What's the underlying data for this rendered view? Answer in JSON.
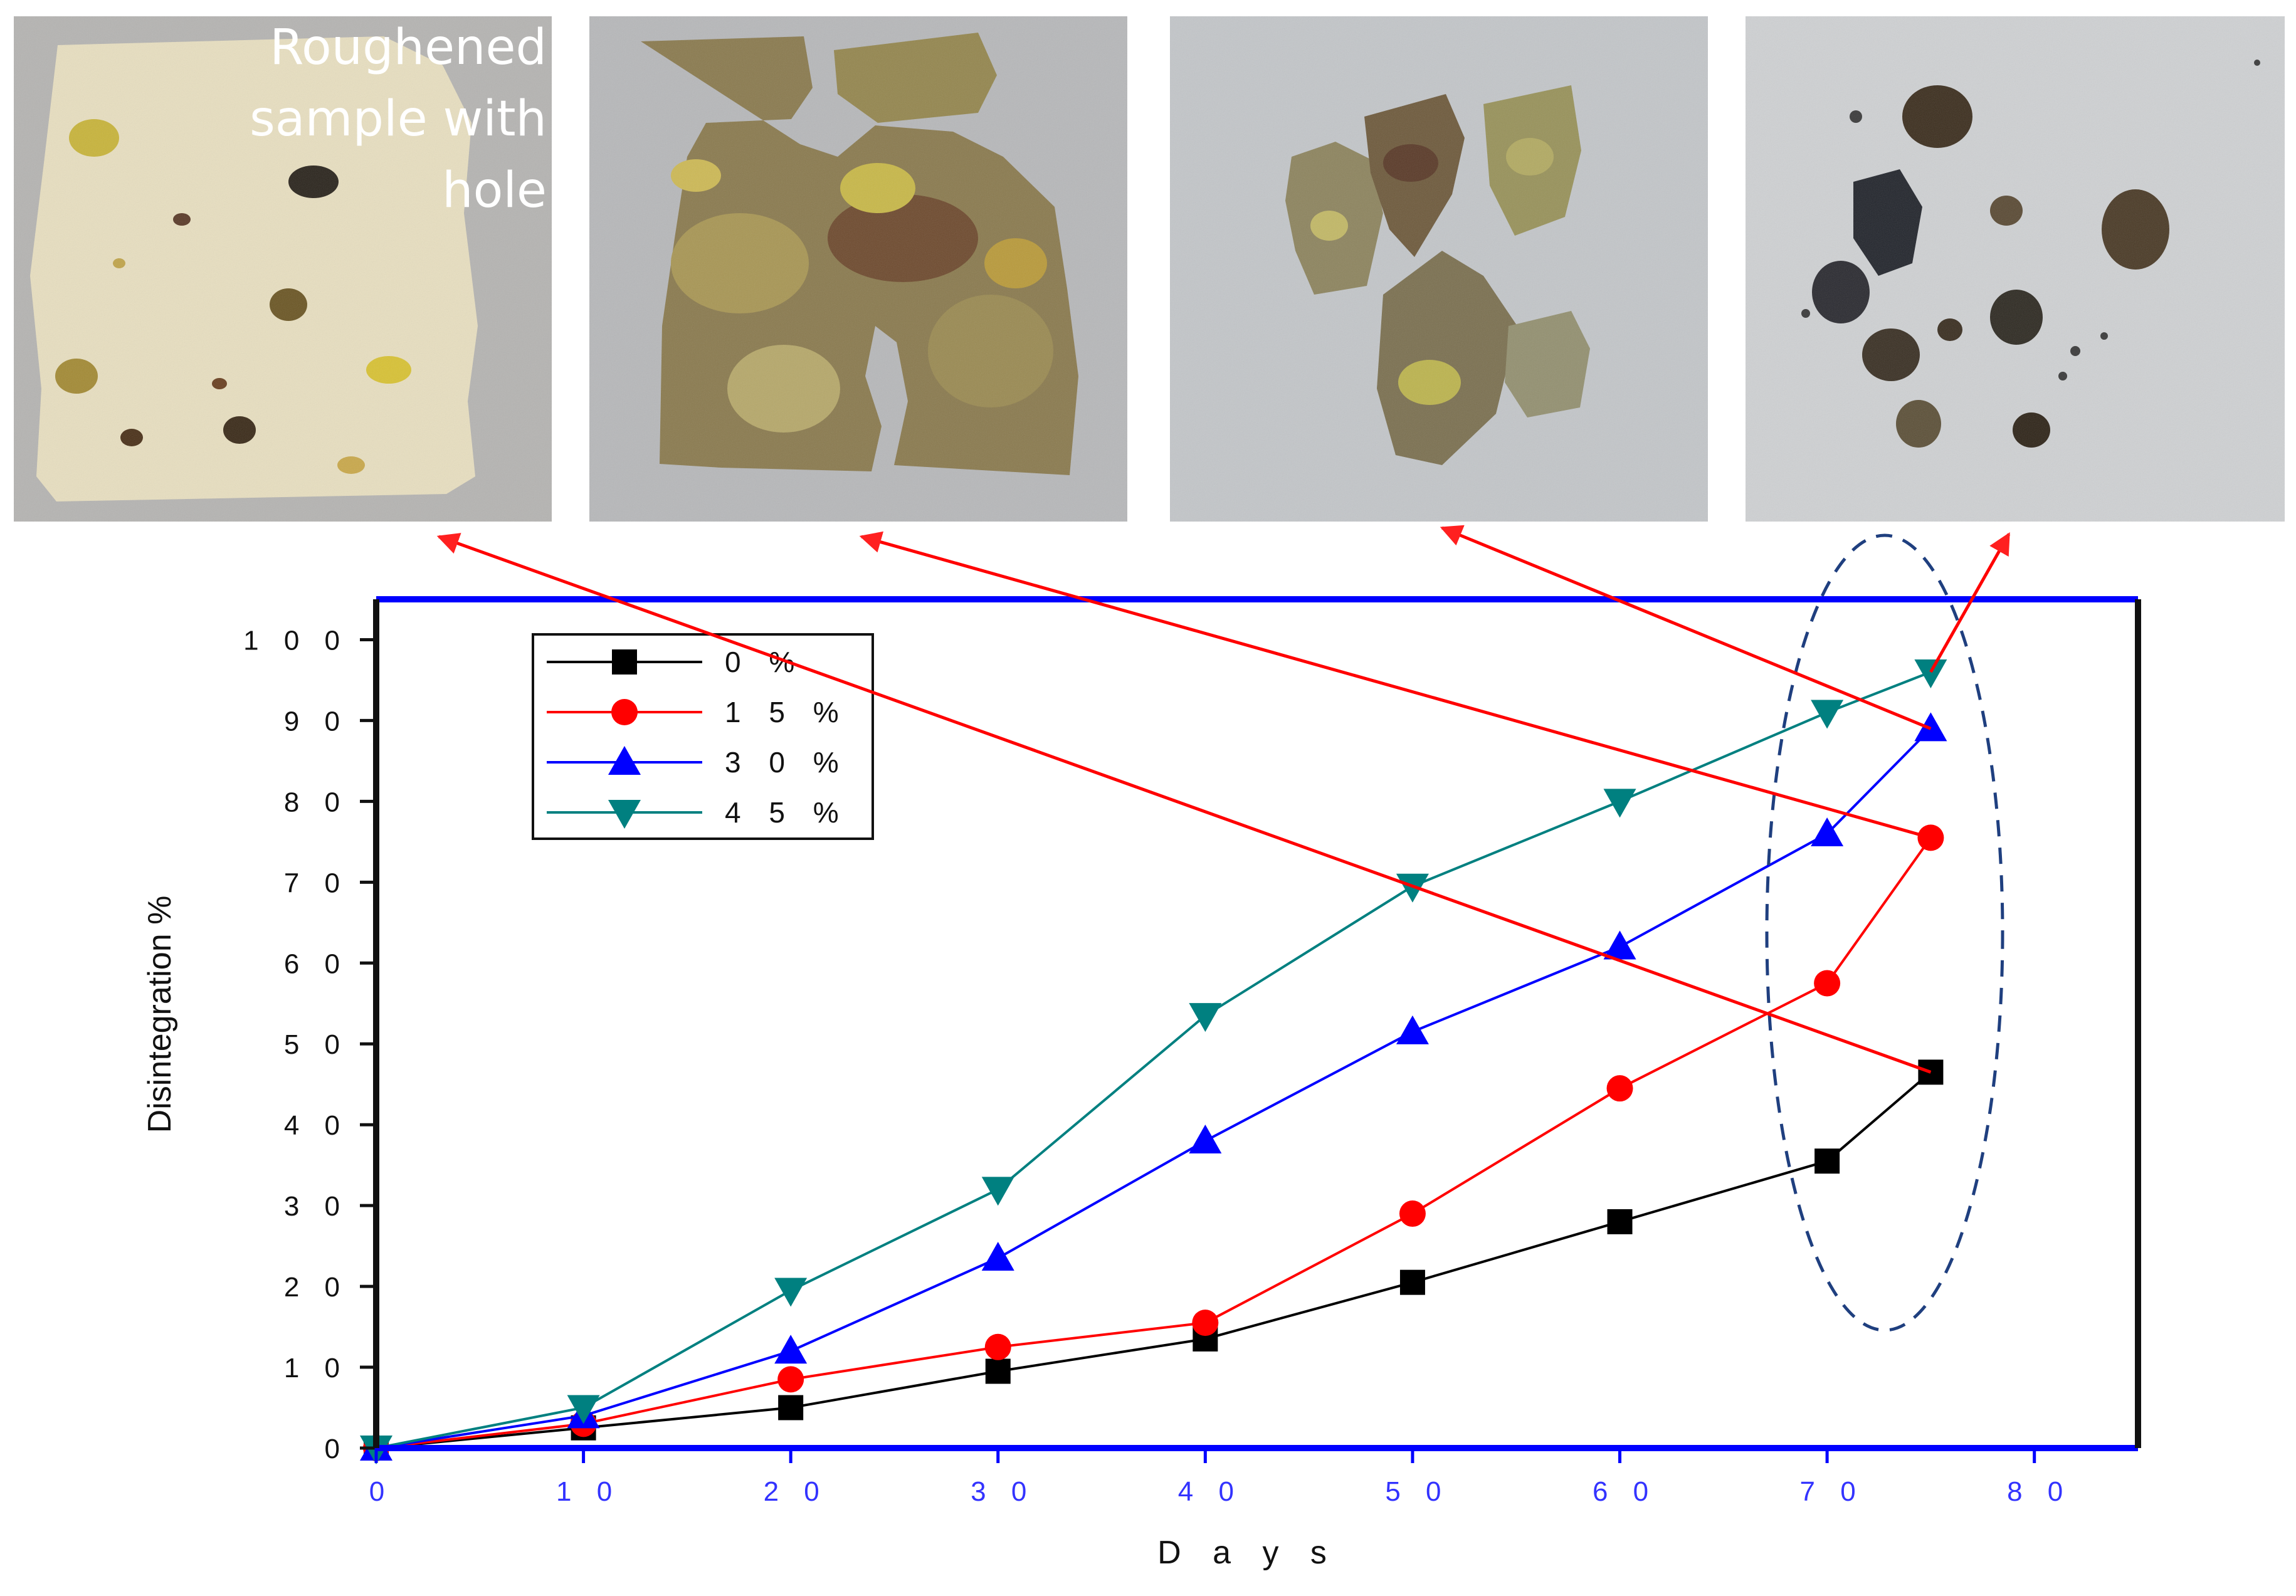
{
  "photos": [
    {
      "caption_lines": [
        "Roughened",
        "sample with",
        "hole"
      ]
    },
    {
      "caption_lines": []
    },
    {
      "caption_lines": []
    },
    {
      "caption_lines": []
    }
  ],
  "chart_data": {
    "type": "line",
    "title": "",
    "xlabel": "D a y s",
    "ylabel": "Disintegration %",
    "xlim": [
      0,
      85
    ],
    "ylim": [
      0,
      105
    ],
    "x_ticks": [
      0,
      10,
      20,
      30,
      40,
      50,
      60,
      70,
      80
    ],
    "x_tick_labels": [
      "0",
      "1 0",
      "2 0",
      "3 0",
      "4 0",
      "5 0",
      "6 0",
      "7 0",
      "8 0"
    ],
    "y_ticks": [
      0,
      10,
      20,
      30,
      40,
      50,
      60,
      70,
      80,
      90,
      100
    ],
    "y_tick_labels": [
      "0",
      "1 0",
      "2 0",
      "3 0",
      "4 0",
      "5 0",
      "6 0",
      "7 0",
      "8 0",
      "9 0",
      "1 0 0"
    ],
    "grid": false,
    "legend_position": "top-left",
    "series": [
      {
        "name": "0 %",
        "color": "#000000",
        "marker": "square",
        "x": [
          0,
          10,
          20,
          30,
          40,
          50,
          60,
          70,
          75
        ],
        "y": [
          0,
          2.5,
          5,
          9.5,
          13.5,
          20.5,
          28,
          35.5,
          46.5
        ]
      },
      {
        "name": "1 5 %",
        "color": "#ff0000",
        "marker": "circle",
        "x": [
          0,
          10,
          20,
          30,
          40,
          50,
          60,
          70,
          75
        ],
        "y": [
          0,
          3,
          8.5,
          12.5,
          15.5,
          29,
          44.5,
          57.5,
          75.5
        ]
      },
      {
        "name": "3 0 %",
        "color": "#0000ff",
        "marker": "triangle-up",
        "x": [
          0,
          10,
          20,
          30,
          40,
          50,
          60,
          70,
          75
        ],
        "y": [
          0,
          4,
          12,
          23.5,
          38,
          51.5,
          62,
          76,
          89
        ]
      },
      {
        "name": "4 5 %",
        "color": "#008080",
        "marker": "triangle-down",
        "x": [
          0,
          10,
          20,
          30,
          40,
          50,
          60,
          70,
          75
        ],
        "y": [
          0,
          5,
          19.5,
          32,
          53.5,
          69.5,
          80,
          91,
          96
        ]
      }
    ],
    "annotations": [
      {
        "type": "arrow",
        "from_series": "0 %",
        "from_x": 75,
        "to_photo": 0,
        "color": "#ff0000"
      },
      {
        "type": "arrow",
        "from_series": "1 5 %",
        "from_x": 75,
        "to_photo": 1,
        "color": "#ff0000"
      },
      {
        "type": "arrow",
        "from_series": "3 0 %",
        "from_x": 75,
        "to_photo": 2,
        "color": "#ff0000"
      },
      {
        "type": "arrow",
        "from_series": "4 5 %",
        "from_x": 75,
        "to_photo": 3,
        "color": "#ff0000"
      },
      {
        "type": "dashed-ellipse",
        "around_x": [
          70,
          75
        ],
        "color": "#1f3f7f"
      }
    ]
  }
}
